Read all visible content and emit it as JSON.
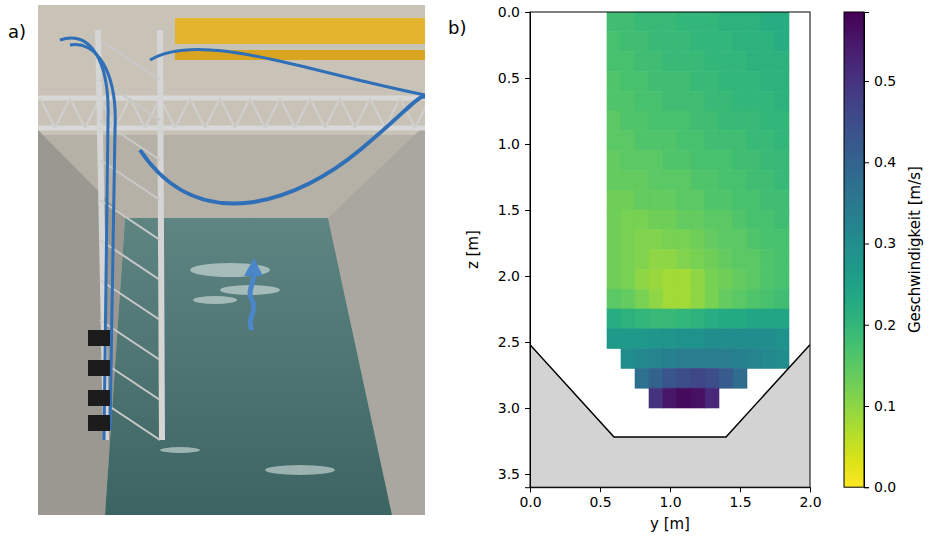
{
  "panel_labels": [
    "a)",
    "b)"
  ],
  "chart_data": {
    "type": "heatmap",
    "x_label": "y [m]",
    "y_label": "z [m]",
    "xlim": [
      0,
      2.0
    ],
    "xticks": [
      {
        "value": 0,
        "label": "0.0"
      },
      0.5,
      {
        "value": 1,
        "label": "1.0"
      },
      1.5,
      {
        "value": 2,
        "label": "2.0"
      }
    ],
    "ylim": [
      0,
      3.6
    ],
    "yticks": [
      {
        "value": 0,
        "label": "0.0"
      },
      0.5,
      {
        "value": 1,
        "label": "1.0"
      },
      1.5,
      {
        "value": 2,
        "label": "2.0"
      },
      2.5,
      {
        "value": 3,
        "label": "3.0"
      },
      3.5
    ],
    "x_edges": [
      0.55,
      0.65,
      0.75,
      0.85,
      0.95,
      1.05,
      1.15,
      1.25,
      1.35,
      1.45,
      1.55,
      1.65,
      1.75,
      1.85
    ],
    "y_edges": [
      0,
      0.15,
      0.3,
      0.45,
      0.6,
      0.75,
      0.9,
      1.05,
      1.2,
      1.35,
      1.5,
      1.65,
      1.8,
      1.95,
      2.1,
      2.25,
      2.4,
      2.55,
      2.7,
      2.85,
      3.0
    ],
    "cells": [
      [
        0.18,
        0.18,
        0.19,
        0.19,
        0.19,
        0.2,
        0.2,
        0.2,
        0.21,
        0.21,
        0.21,
        0.22,
        0.22
      ],
      [
        0.17,
        0.18,
        0.18,
        0.19,
        0.19,
        0.19,
        0.2,
        0.2,
        0.2,
        0.21,
        0.21,
        0.21,
        0.22
      ],
      [
        0.17,
        0.17,
        0.18,
        0.18,
        0.19,
        0.19,
        0.19,
        0.2,
        0.2,
        0.2,
        0.21,
        0.21,
        0.21
      ],
      [
        0.16,
        0.17,
        0.17,
        0.18,
        0.18,
        0.18,
        0.19,
        0.19,
        0.2,
        0.2,
        0.2,
        0.21,
        0.21
      ],
      [
        0.16,
        0.16,
        0.17,
        0.17,
        0.18,
        0.18,
        0.18,
        0.19,
        0.19,
        0.2,
        0.2,
        0.2,
        0.21
      ],
      [
        0.15,
        0.16,
        0.16,
        0.17,
        0.17,
        0.17,
        0.18,
        0.18,
        0.19,
        0.19,
        0.19,
        0.2,
        0.2
      ],
      [
        0.15,
        0.15,
        0.16,
        0.16,
        0.16,
        0.17,
        0.17,
        0.18,
        0.18,
        0.18,
        0.19,
        0.19,
        0.2
      ],
      [
        0.14,
        0.15,
        0.15,
        0.15,
        0.16,
        0.16,
        0.17,
        0.17,
        0.17,
        0.18,
        0.18,
        0.19,
        0.19
      ],
      [
        0.14,
        0.14,
        0.14,
        0.15,
        0.15,
        0.15,
        0.16,
        0.16,
        0.17,
        0.17,
        0.18,
        0.18,
        0.19
      ],
      [
        0.13,
        0.13,
        0.14,
        0.14,
        0.14,
        0.15,
        0.15,
        0.16,
        0.16,
        0.17,
        0.17,
        0.18,
        0.18
      ],
      [
        0.13,
        0.12,
        0.12,
        0.13,
        0.13,
        0.14,
        0.14,
        0.15,
        0.15,
        0.16,
        0.17,
        0.17,
        0.18
      ],
      [
        0.13,
        0.12,
        0.11,
        0.11,
        0.12,
        0.12,
        0.13,
        0.14,
        0.15,
        0.15,
        0.16,
        0.17,
        0.17
      ],
      [
        0.13,
        0.12,
        0.11,
        0.1,
        0.1,
        0.11,
        0.12,
        0.13,
        0.14,
        0.15,
        0.15,
        0.16,
        0.17
      ],
      [
        0.13,
        0.12,
        0.1,
        0.09,
        0.08,
        0.08,
        0.1,
        0.12,
        0.13,
        0.14,
        0.15,
        0.16,
        0.17
      ],
      [
        0.15,
        0.14,
        0.12,
        0.1,
        0.08,
        0.08,
        0.1,
        0.12,
        0.14,
        0.15,
        0.16,
        0.17,
        0.18
      ],
      [
        0.22,
        0.21,
        0.2,
        0.19,
        0.19,
        0.2,
        0.21,
        0.22,
        0.23,
        0.23,
        0.24,
        0.24,
        0.24
      ],
      [
        0.27,
        0.27,
        0.27,
        0.28,
        0.28,
        0.29,
        0.29,
        0.3,
        0.3,
        0.3,
        0.3,
        0.3,
        0.29
      ],
      [
        null,
        0.3,
        0.31,
        0.32,
        0.33,
        0.34,
        0.34,
        0.34,
        0.34,
        0.33,
        0.32,
        0.31,
        0.3
      ],
      [
        null,
        null,
        0.37,
        0.4,
        0.43,
        0.45,
        0.46,
        0.45,
        0.42,
        0.38,
        null,
        null,
        null
      ],
      [
        null,
        null,
        null,
        0.5,
        0.55,
        0.57,
        0.56,
        0.52,
        null,
        null,
        null,
        null,
        null
      ]
    ],
    "colorbar": {
      "label": "Geschwindigkeit [m/s]",
      "range": [
        0,
        0.585
      ],
      "ticks": [
        {
          "value": 0,
          "label": "0.0"
        },
        0.1,
        0.2,
        0.3,
        0.4,
        0.5
      ]
    },
    "channel_bed": {
      "y": [
        0,
        0.6,
        1.4,
        2.0
      ],
      "z": [
        2.52,
        3.22,
        3.22,
        2.52
      ]
    }
  }
}
